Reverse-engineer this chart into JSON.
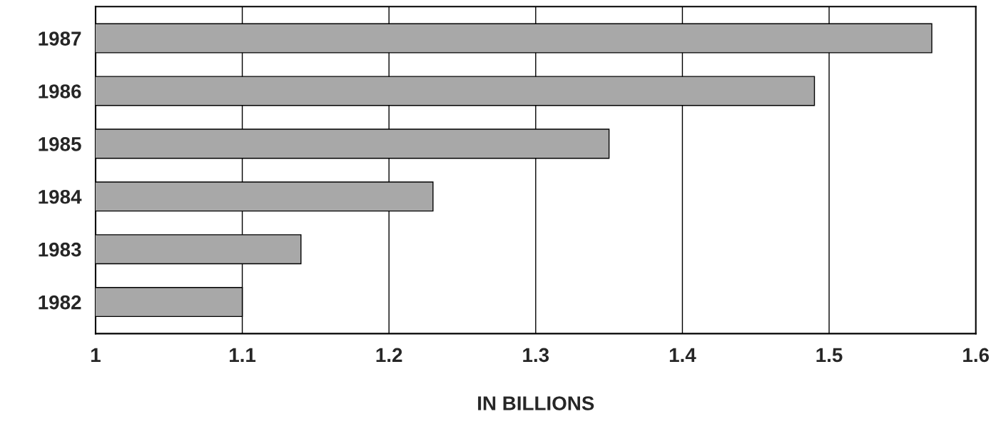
{
  "chart_data": {
    "type": "bar",
    "orientation": "horizontal",
    "xlabel": "IN BILLIONS",
    "categories": [
      "1987",
      "1986",
      "1985",
      "1984",
      "1983",
      "1982"
    ],
    "values": [
      1.57,
      1.49,
      1.35,
      1.23,
      1.14,
      1.1
    ],
    "color": "#a8a8a8",
    "xlim": [
      1,
      1.6
    ],
    "xticks": [
      1,
      1.1,
      1.2,
      1.3,
      1.4,
      1.5,
      1.6
    ],
    "grid": "x"
  }
}
